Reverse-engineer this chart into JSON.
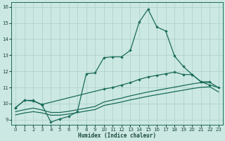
{
  "bg_color": "#cce8e2",
  "grid_color": "#aacfc8",
  "line_color": "#1a6b5a",
  "xlim": [
    -0.5,
    23.5
  ],
  "ylim": [
    8.7,
    16.3
  ],
  "xticks": [
    0,
    1,
    2,
    3,
    4,
    5,
    6,
    7,
    8,
    9,
    10,
    11,
    12,
    13,
    14,
    15,
    16,
    17,
    18,
    19,
    20,
    21,
    22,
    23
  ],
  "yticks": [
    9,
    10,
    11,
    12,
    13,
    14,
    15,
    16
  ],
  "xlabel": "Humidex (Indice chaleur)",
  "curve_spike_x": [
    0,
    1,
    2,
    3,
    4,
    5,
    6,
    7,
    8,
    9,
    10,
    11,
    12,
    13,
    14,
    15,
    16,
    17,
    18,
    19,
    20,
    21,
    22
  ],
  "curve_spike_y": [
    9.75,
    10.2,
    10.2,
    9.9,
    8.85,
    9.05,
    9.2,
    9.5,
    11.85,
    11.9,
    12.85,
    12.9,
    12.9,
    13.3,
    15.05,
    15.85,
    14.75,
    14.5,
    12.95,
    12.3,
    11.8,
    11.35,
    11.35
  ],
  "curve_upper_x": [
    0,
    1,
    2,
    3,
    10,
    11,
    12,
    13,
    14,
    15,
    16,
    17,
    18,
    19,
    20,
    21,
    22,
    23
  ],
  "curve_upper_y": [
    9.75,
    10.2,
    10.15,
    9.95,
    10.9,
    11.0,
    11.15,
    11.3,
    11.5,
    11.65,
    11.75,
    11.85,
    11.95,
    11.8,
    11.8,
    11.35,
    11.15,
    11.0
  ],
  "curve_mid_x": [
    0,
    1,
    2,
    3,
    4,
    5,
    6,
    7,
    8,
    9,
    10,
    11,
    12,
    13,
    14,
    15,
    16,
    17,
    18,
    19,
    20,
    21,
    22,
    23
  ],
  "curve_mid_y": [
    9.5,
    9.62,
    9.72,
    9.6,
    9.45,
    9.45,
    9.52,
    9.62,
    9.72,
    9.82,
    10.1,
    10.22,
    10.34,
    10.48,
    10.6,
    10.72,
    10.82,
    10.92,
    11.02,
    11.12,
    11.22,
    11.3,
    11.32,
    10.98
  ],
  "curve_low_x": [
    0,
    1,
    2,
    3,
    4,
    5,
    6,
    7,
    8,
    9,
    10,
    11,
    12,
    13,
    14,
    15,
    16,
    17,
    18,
    19,
    20,
    21,
    22,
    23
  ],
  "curve_low_y": [
    9.3,
    9.42,
    9.5,
    9.42,
    9.28,
    9.28,
    9.35,
    9.44,
    9.54,
    9.63,
    9.88,
    9.99,
    10.1,
    10.23,
    10.34,
    10.45,
    10.55,
    10.64,
    10.74,
    10.83,
    10.93,
    11.01,
    11.04,
    10.72
  ]
}
